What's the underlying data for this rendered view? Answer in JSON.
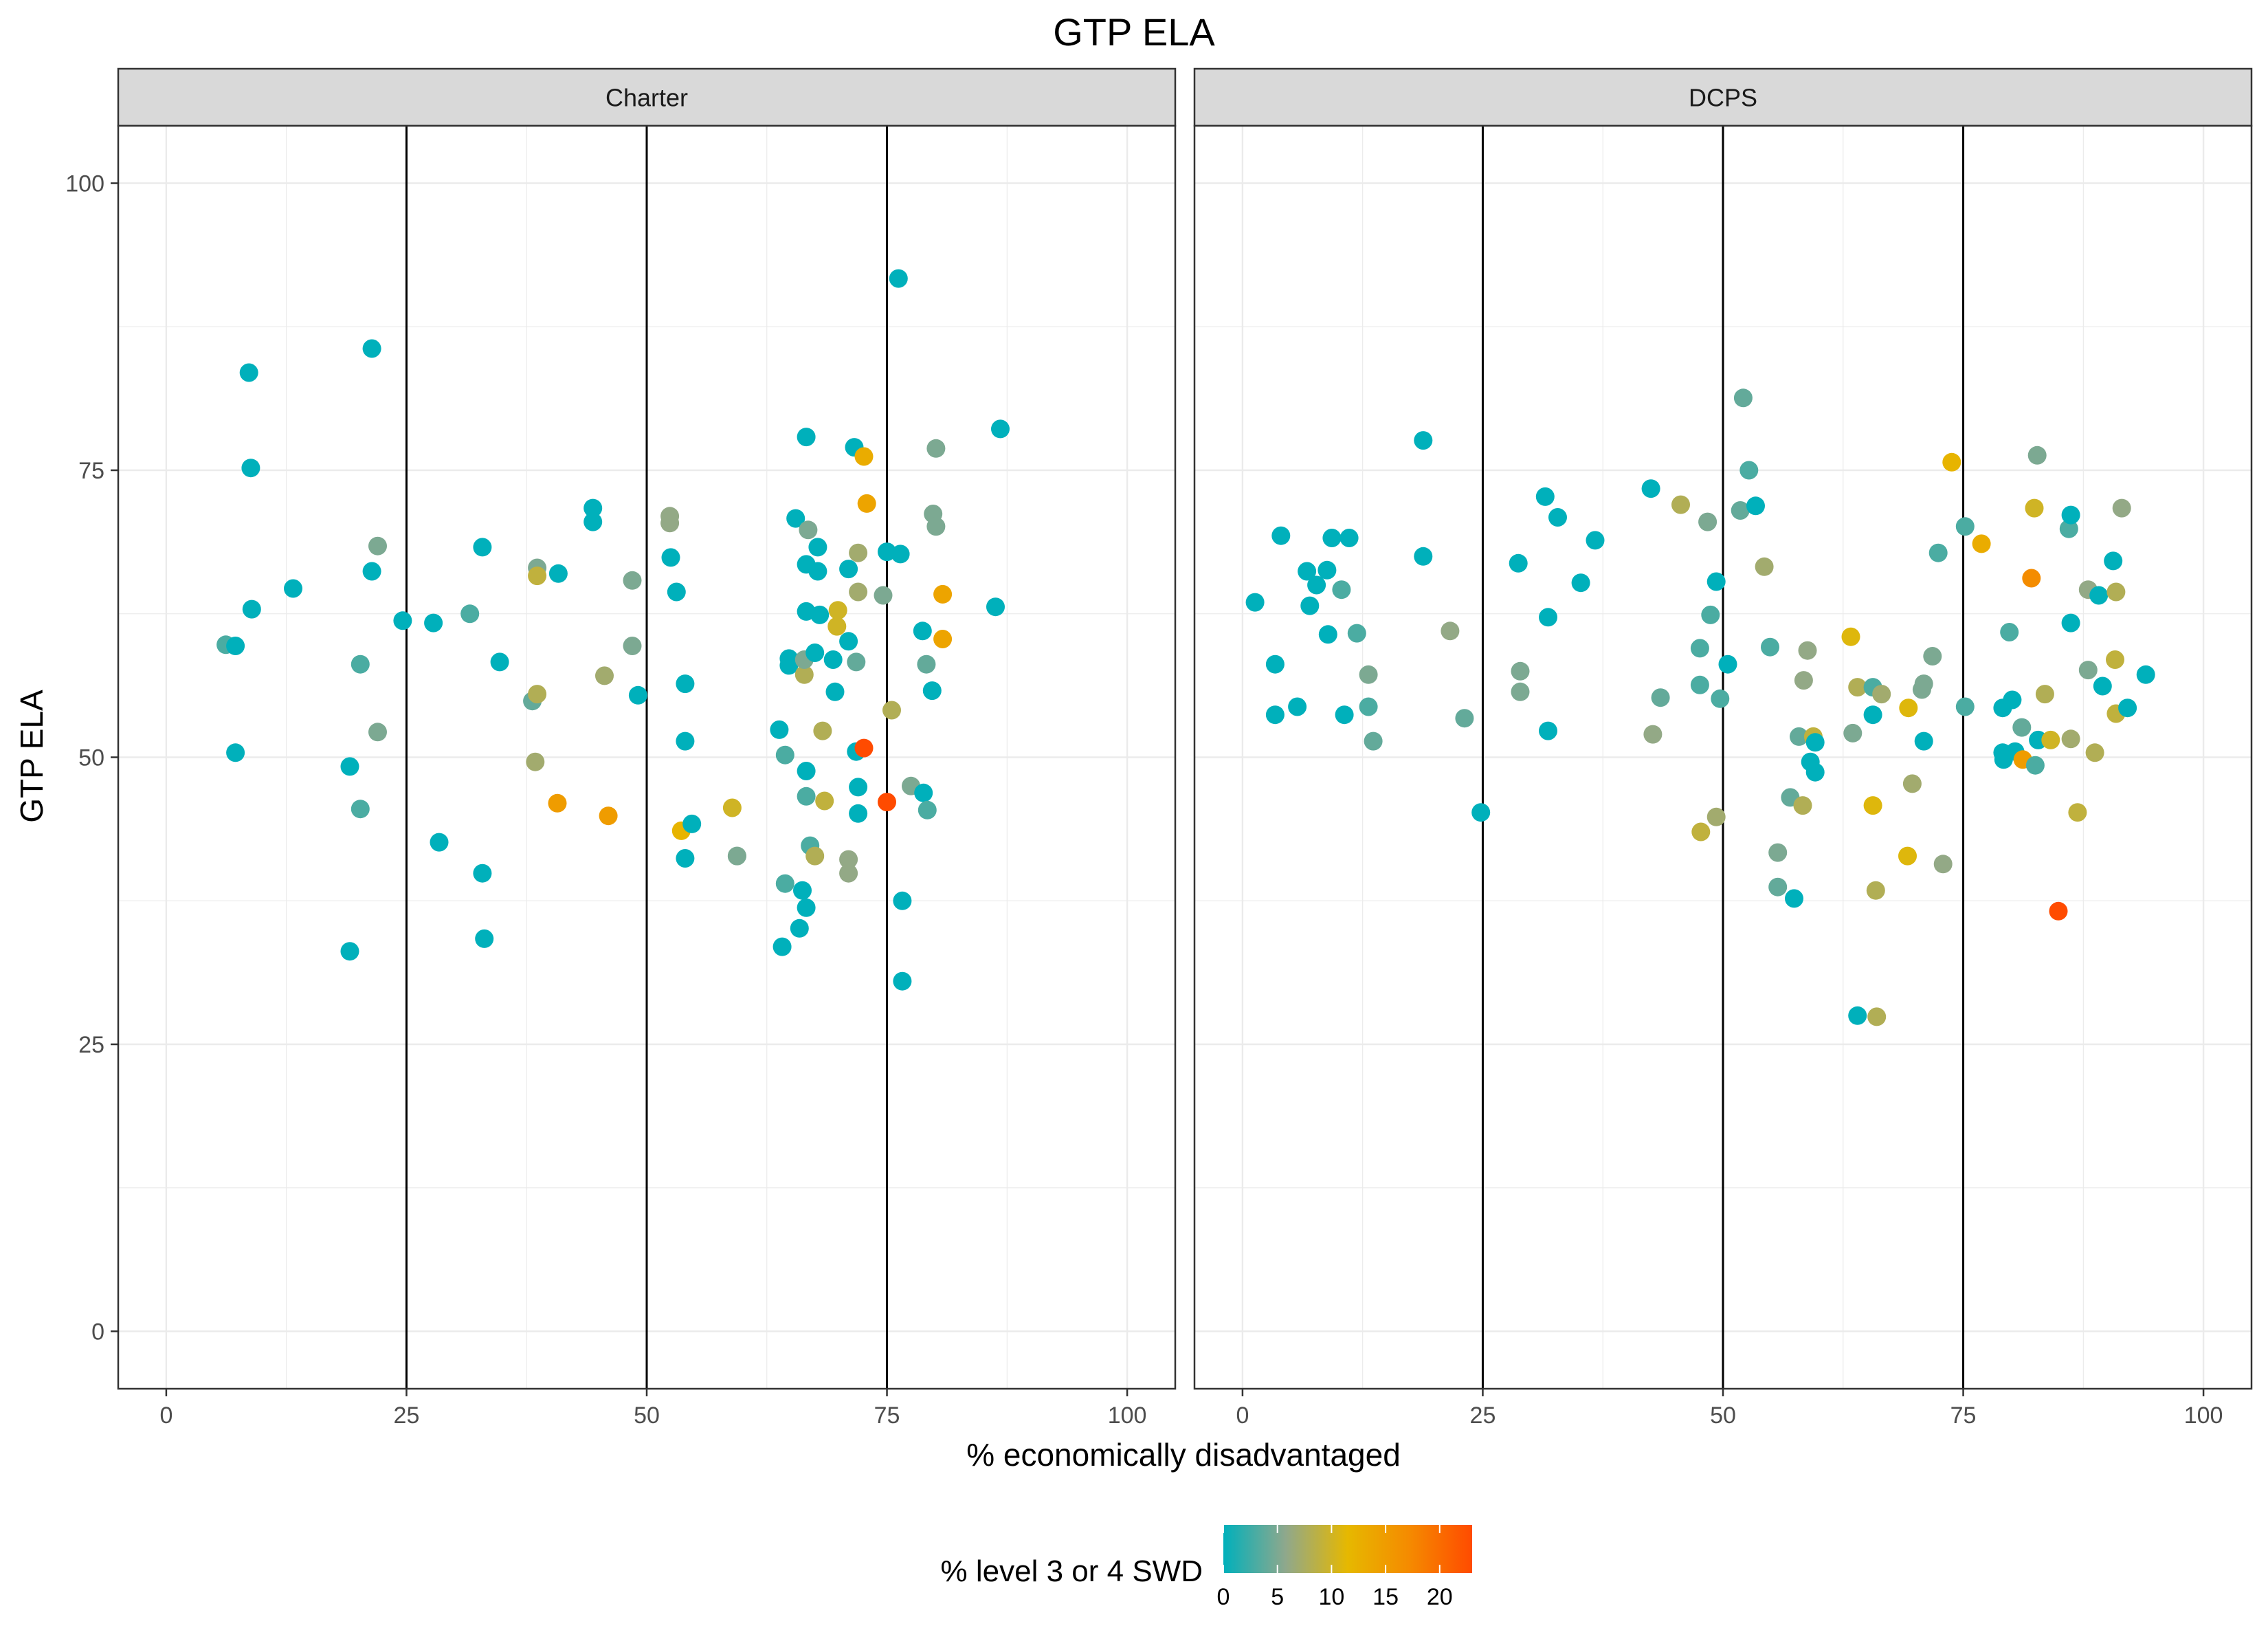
{
  "chart_data": {
    "type": "scatter",
    "title": "GTP ELA",
    "xlabel": "% economically disadvantaged",
    "ylabel": "GTP ELA",
    "xlim": [
      -5,
      105
    ],
    "ylim": [
      -5,
      105
    ],
    "x_ticks": [
      0,
      25,
      50,
      75,
      100
    ],
    "y_ticks": [
      0,
      25,
      50,
      75,
      100
    ],
    "x_tick_labels": [
      "0",
      "25",
      "50",
      "75",
      "100"
    ],
    "y_tick_labels": [
      "0",
      "25",
      "50",
      "75",
      "100"
    ],
    "reference_lines_x": [
      25,
      50,
      75
    ],
    "grid": true,
    "color_legend": {
      "title": "% level 3 or 4 SWD",
      "min": 0,
      "max": 23,
      "ticks": [
        0,
        5,
        10,
        15,
        20
      ],
      "tick_labels": [
        "0",
        "5",
        "10",
        "15",
        "20"
      ],
      "colors": [
        "#00b0bb",
        "#8fa88c",
        "#e6b800",
        "#f58a00",
        "#ff4b00"
      ],
      "placement": "bottom"
    },
    "panels": [
      {
        "name": "Charter",
        "points": [
          [
            6.2,
            59.8,
            3
          ],
          [
            7.2,
            59.7,
            0
          ],
          [
            7.2,
            50.4,
            0
          ],
          [
            8.6,
            83.5,
            0
          ],
          [
            8.8,
            75.2,
            0
          ],
          [
            8.9,
            62.9,
            0
          ],
          [
            13.2,
            64.7,
            0
          ],
          [
            19.1,
            49.2,
            0
          ],
          [
            19.1,
            33.1,
            0
          ],
          [
            20.2,
            58.1,
            3
          ],
          [
            20.2,
            45.5,
            3
          ],
          [
            21.4,
            85.6,
            0
          ],
          [
            21.4,
            66.2,
            0
          ],
          [
            22,
            68.4,
            5
          ],
          [
            22,
            52.2,
            5
          ],
          [
            24.6,
            61.9,
            0
          ],
          [
            27.8,
            61.7,
            0
          ],
          [
            28.4,
            42.6,
            0
          ],
          [
            31.6,
            62.5,
            3
          ],
          [
            32.9,
            68.3,
            0
          ],
          [
            32.9,
            39.9,
            0
          ],
          [
            33.1,
            34.2,
            0
          ],
          [
            34.7,
            58.3,
            0
          ],
          [
            38.1,
            54.9,
            4
          ],
          [
            38.4,
            49.6,
            7
          ],
          [
            38.6,
            66.5,
            5
          ],
          [
            38.6,
            65.8,
            9
          ],
          [
            38.6,
            55.5,
            8
          ],
          [
            40.7,
            46,
            15
          ],
          [
            40.8,
            66,
            0
          ],
          [
            44.4,
            71.7,
            0
          ],
          [
            44.4,
            70.5,
            0
          ],
          [
            45.6,
            57.1,
            7
          ],
          [
            46,
            44.9,
            15
          ],
          [
            48.5,
            65.4,
            5
          ],
          [
            48.5,
            59.7,
            5
          ],
          [
            49.1,
            55.4,
            0
          ],
          [
            52.4,
            71,
            6
          ],
          [
            52.4,
            70.4,
            6
          ],
          [
            52.5,
            67.4,
            0
          ],
          [
            53.1,
            64.4,
            0
          ],
          [
            53.6,
            43.6,
            12
          ],
          [
            54,
            56.4,
            0
          ],
          [
            54,
            51.4,
            0
          ],
          [
            54,
            41.2,
            0
          ],
          [
            54.7,
            44.2,
            0
          ],
          [
            58.9,
            45.6,
            10
          ],
          [
            59.4,
            41.4,
            5
          ],
          [
            59.4,
            41.4,
            5
          ],
          [
            63.8,
            52.4,
            0
          ],
          [
            64.1,
            33.5,
            0
          ],
          [
            64.4,
            50.2,
            3
          ],
          [
            64.4,
            39,
            3
          ],
          [
            64.8,
            58.6,
            0
          ],
          [
            64.8,
            58,
            0
          ],
          [
            65.5,
            70.8,
            0
          ],
          [
            65.9,
            35.1,
            0
          ],
          [
            66.2,
            38.4,
            0
          ],
          [
            66.4,
            57.2,
            8
          ],
          [
            66.4,
            58.5,
            5
          ],
          [
            66.6,
            77.9,
            0
          ],
          [
            66.6,
            66.8,
            0
          ],
          [
            66.6,
            62.7,
            0
          ],
          [
            66.6,
            48.8,
            0
          ],
          [
            66.6,
            46.6,
            3
          ],
          [
            66.6,
            36.9,
            0
          ],
          [
            66.8,
            69.8,
            5
          ],
          [
            67,
            42.3,
            3
          ],
          [
            67.5,
            59.1,
            0
          ],
          [
            67.5,
            41.4,
            8
          ],
          [
            67.8,
            68.3,
            0
          ],
          [
            67.8,
            66.2,
            0
          ],
          [
            68,
            62.4,
            0
          ],
          [
            68.3,
            52.3,
            8
          ],
          [
            68.5,
            46.2,
            9
          ],
          [
            69.4,
            58.5,
            0
          ],
          [
            69.6,
            55.7,
            0
          ],
          [
            69.8,
            61.4,
            10
          ],
          [
            69.9,
            62.8,
            10
          ],
          [
            71,
            66.4,
            0
          ],
          [
            71,
            60.1,
            0
          ],
          [
            71,
            41.1,
            6
          ],
          [
            71,
            39.9,
            6
          ],
          [
            71.6,
            77,
            0
          ],
          [
            71.8,
            50.5,
            0
          ],
          [
            71.8,
            58.3,
            4
          ],
          [
            72,
            67.8,
            7
          ],
          [
            72,
            64.4,
            7
          ],
          [
            72,
            47.4,
            0
          ],
          [
            72,
            45.1,
            0
          ],
          [
            72.6,
            50.8,
            23
          ],
          [
            72.6,
            76.2,
            13
          ],
          [
            72.9,
            72.1,
            14
          ],
          [
            74.6,
            64.1,
            5
          ],
          [
            75,
            67.9,
            0
          ],
          [
            75,
            46.1,
            23
          ],
          [
            75.5,
            54.1,
            8
          ],
          [
            76.2,
            91.7,
            0
          ],
          [
            76.4,
            67.7,
            0
          ],
          [
            76.6,
            30.5,
            0
          ],
          [
            76.6,
            37.5,
            0
          ],
          [
            77.5,
            47.5,
            5
          ],
          [
            78.7,
            61,
            0
          ],
          [
            78.8,
            46.9,
            0
          ],
          [
            79.1,
            58.1,
            4
          ],
          [
            79.2,
            45.4,
            3
          ],
          [
            79.7,
            55.8,
            0
          ],
          [
            79.8,
            71.2,
            5
          ],
          [
            80.1,
            76.9,
            5
          ],
          [
            80.1,
            70.1,
            5
          ],
          [
            80.8,
            64.2,
            14
          ],
          [
            80.8,
            60.3,
            14
          ],
          [
            86.3,
            63.1,
            0
          ],
          [
            86.8,
            78.6,
            0
          ]
        ]
      },
      {
        "name": "DCPS",
        "points": [
          [
            1.3,
            63.5,
            0
          ],
          [
            3.4,
            58.1,
            0
          ],
          [
            3.4,
            53.7,
            0
          ],
          [
            4,
            69.3,
            0
          ],
          [
            5.7,
            54.4,
            0
          ],
          [
            6.7,
            66.2,
            0
          ],
          [
            7,
            63.2,
            0
          ],
          [
            7.7,
            65,
            0
          ],
          [
            8.8,
            66.3,
            0
          ],
          [
            8.9,
            60.7,
            0
          ],
          [
            9.3,
            69.1,
            0
          ],
          [
            10.3,
            64.6,
            3
          ],
          [
            10.6,
            53.7,
            0
          ],
          [
            11.1,
            69.1,
            0
          ],
          [
            11.9,
            60.8,
            3
          ],
          [
            13.1,
            57.2,
            5
          ],
          [
            13.1,
            54.4,
            3
          ],
          [
            13.6,
            51.4,
            4
          ],
          [
            18.8,
            77.6,
            0
          ],
          [
            18.8,
            67.5,
            0
          ],
          [
            21.6,
            61,
            6
          ],
          [
            23.1,
            53.4,
            4
          ],
          [
            24.8,
            45.2,
            0
          ],
          [
            28.7,
            66.9,
            0
          ],
          [
            28.9,
            57.5,
            5
          ],
          [
            28.9,
            55.7,
            5
          ],
          [
            31.5,
            72.7,
            0
          ],
          [
            31.8,
            52.3,
            0
          ],
          [
            31.8,
            62.2,
            0
          ],
          [
            32.8,
            70.9,
            0
          ],
          [
            35.2,
            65.2,
            0
          ],
          [
            36.7,
            68.9,
            0
          ],
          [
            42.5,
            73.4,
            0
          ],
          [
            42.7,
            52,
            6
          ],
          [
            43.5,
            55.2,
            4
          ],
          [
            45.6,
            72,
            8
          ],
          [
            47.6,
            59.5,
            3
          ],
          [
            47.6,
            56.3,
            3
          ],
          [
            47.7,
            43.5,
            9
          ],
          [
            48.4,
            70.5,
            5
          ],
          [
            48.7,
            62.4,
            3
          ],
          [
            49.3,
            65.3,
            0
          ],
          [
            49.3,
            44.8,
            7
          ],
          [
            49.7,
            55.1,
            3
          ],
          [
            50.5,
            58.1,
            0
          ],
          [
            51.8,
            71.5,
            4
          ],
          [
            52.1,
            81.3,
            4
          ],
          [
            52.7,
            75,
            3
          ],
          [
            53.4,
            71.9,
            0
          ],
          [
            54.3,
            66.6,
            7
          ],
          [
            54.9,
            59.6,
            3
          ],
          [
            55.7,
            41.7,
            5
          ],
          [
            55.7,
            38.7,
            4
          ],
          [
            57,
            46.5,
            4
          ],
          [
            57.4,
            37.7,
            0
          ],
          [
            57.9,
            51.8,
            4
          ],
          [
            58.3,
            45.8,
            8
          ],
          [
            58.4,
            56.7,
            6
          ],
          [
            58.8,
            59.3,
            6
          ],
          [
            59.1,
            49.6,
            0
          ],
          [
            59.4,
            51.8,
            9
          ],
          [
            59.6,
            51.3,
            0
          ],
          [
            59.6,
            48.7,
            0
          ],
          [
            63.3,
            60.5,
            11
          ],
          [
            63.5,
            52.1,
            5
          ],
          [
            64,
            27.5,
            0
          ],
          [
            64,
            56.1,
            8
          ],
          [
            65.6,
            56.1,
            3
          ],
          [
            65.6,
            53.7,
            0
          ],
          [
            65.6,
            45.8,
            11
          ],
          [
            65.9,
            38.4,
            8
          ],
          [
            66,
            27.4,
            8
          ],
          [
            66.5,
            55.5,
            7
          ],
          [
            69.2,
            41.4,
            11
          ],
          [
            69.3,
            54.3,
            11
          ],
          [
            69.7,
            47.7,
            7
          ],
          [
            70.7,
            55.9,
            5
          ],
          [
            70.9,
            56.4,
            5
          ],
          [
            70.9,
            51.4,
            0
          ],
          [
            71.8,
            58.8,
            5
          ],
          [
            72.4,
            67.8,
            3
          ],
          [
            72.9,
            40.7,
            6
          ],
          [
            73.8,
            75.7,
            12
          ],
          [
            75.2,
            70.1,
            3
          ],
          [
            75.2,
            54.4,
            3
          ],
          [
            76.9,
            68.6,
            13
          ],
          [
            79.1,
            50.4,
            0
          ],
          [
            79.1,
            54.3,
            0
          ],
          [
            79.2,
            49.8,
            0
          ],
          [
            79.8,
            60.9,
            3
          ],
          [
            80.1,
            55,
            0
          ],
          [
            80.4,
            50.5,
            0
          ],
          [
            81.1,
            52.6,
            4
          ],
          [
            81.2,
            49.8,
            15
          ],
          [
            82.1,
            65.6,
            17
          ],
          [
            82.4,
            71.7,
            10
          ],
          [
            82.5,
            49.3,
            3
          ],
          [
            82.7,
            76.3,
            5
          ],
          [
            82.8,
            51.5,
            0
          ],
          [
            83.5,
            55.5,
            8
          ],
          [
            84.1,
            51.5,
            10
          ],
          [
            86,
            69.9,
            3
          ],
          [
            86.2,
            71.1,
            0
          ],
          [
            86.2,
            61.7,
            0
          ],
          [
            86.2,
            51.6,
            7
          ],
          [
            86.9,
            45.2,
            9
          ],
          [
            88,
            64.6,
            6
          ],
          [
            88,
            57.6,
            5
          ],
          [
            88.7,
            50.4,
            8
          ],
          [
            89.1,
            64.1,
            0
          ],
          [
            89.5,
            56.2,
            0
          ],
          [
            90.6,
            67.1,
            0
          ],
          [
            90.8,
            58.5,
            9
          ],
          [
            90.9,
            64.4,
            8
          ],
          [
            90.9,
            53.8,
            9
          ],
          [
            91.5,
            71.7,
            6
          ],
          [
            92.1,
            54.3,
            0
          ],
          [
            94,
            57.2,
            0
          ],
          [
            84.9,
            36.6,
            23
          ]
        ]
      }
    ]
  }
}
